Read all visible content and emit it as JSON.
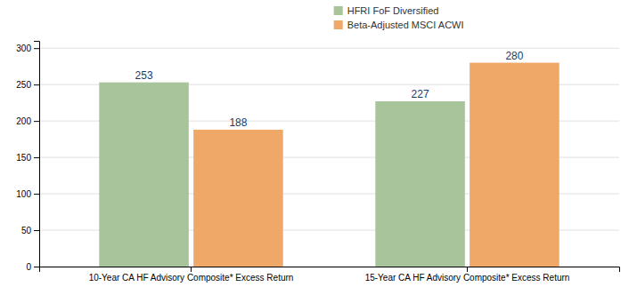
{
  "chart_data": {
    "type": "bar",
    "categories": [
      "10-Year CA HF Advisory Composite* Excess Return",
      "15-Year CA HF Advisory Composite* Excess Return"
    ],
    "series": [
      {
        "name": "HFRI FoF Diversified",
        "values": [
          253,
          227
        ],
        "color": "#a8c49a"
      },
      {
        "name": "Beta-Adjusted MSCI ACWI",
        "values": [
          188,
          280
        ],
        "color": "#f0a868"
      }
    ],
    "ylim": [
      0,
      310
    ],
    "yticks": [
      0,
      50,
      100,
      150,
      200,
      250,
      300
    ],
    "grid": true,
    "data_labels": true,
    "legend": "top"
  }
}
